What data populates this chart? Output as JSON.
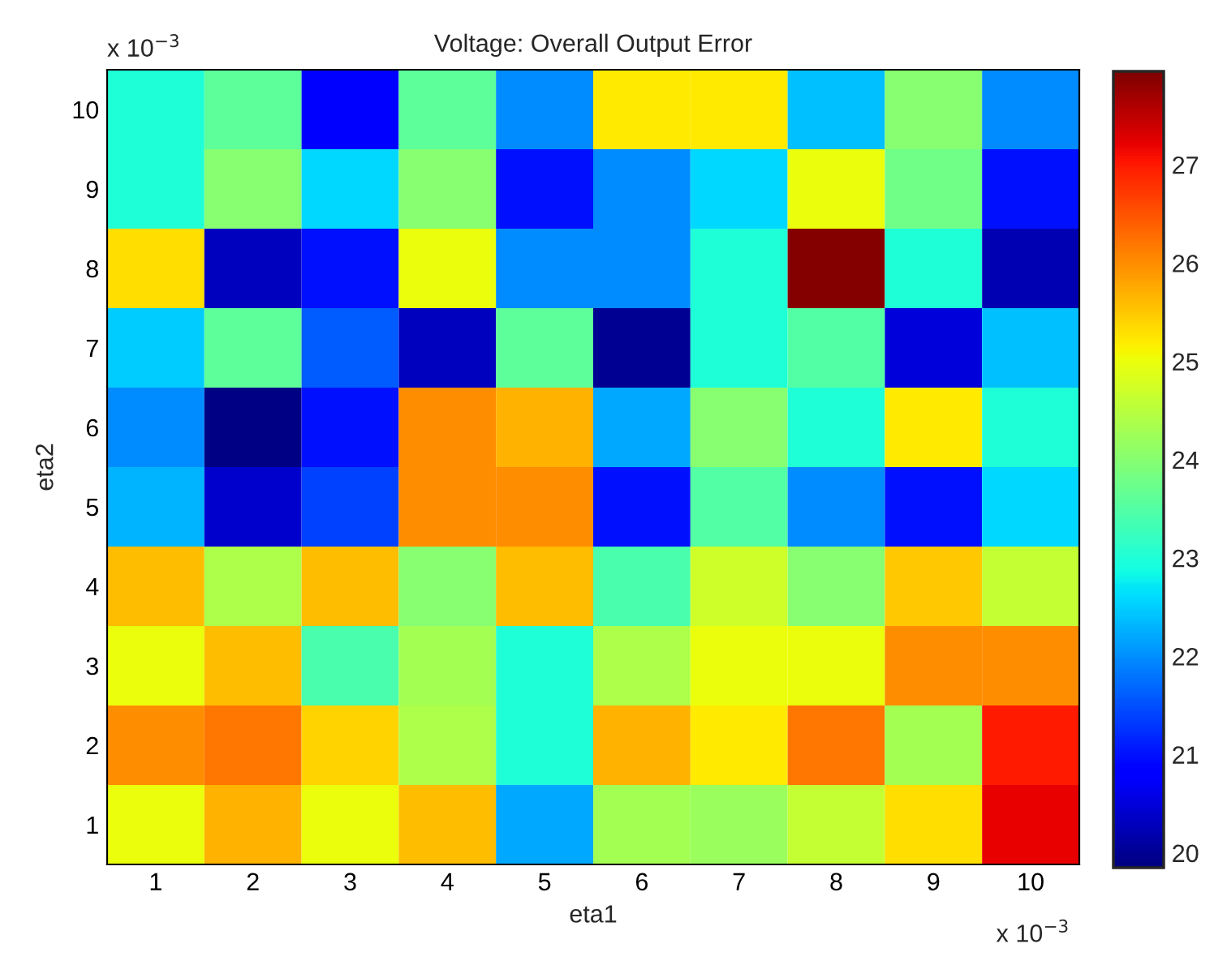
{
  "chart_data": {
    "type": "heatmap",
    "title": "Voltage: Overall Output Error",
    "xlabel": "eta1",
    "ylabel": "eta2",
    "categories": [
      "1",
      "2",
      "3",
      "4",
      "5",
      "6",
      "7",
      "8",
      "9",
      "10"
    ],
    "y_categories": [
      "10",
      "9",
      "8",
      "7",
      "6",
      "5",
      "4",
      "3",
      "2",
      "1"
    ],
    "cells": [
      [
        23,
        23.6,
        20.8,
        23.6,
        22,
        25.2,
        25.2,
        22.4,
        24,
        22
      ],
      [
        23,
        24,
        22.6,
        24,
        21,
        22,
        22.6,
        25,
        23.8,
        21
      ],
      [
        25.3,
        20.3,
        21,
        25,
        22,
        22,
        23,
        27.9,
        23,
        20.2
      ],
      [
        22.5,
        23.6,
        21.6,
        20.3,
        23.6,
        20,
        23,
        23.5,
        20.5,
        22.4
      ],
      [
        22,
        19.9,
        21,
        26,
        25.7,
        22.2,
        24,
        23,
        25.2,
        23
      ],
      [
        22.3,
        20.4,
        21.4,
        26,
        26,
        21,
        23.5,
        22,
        21,
        22.6
      ],
      [
        25.6,
        24.4,
        25.6,
        24,
        25.6,
        23.4,
        24.7,
        24,
        25.5,
        24.6
      ],
      [
        25,
        25.6,
        23.4,
        24.3,
        23,
        24.4,
        25,
        25,
        26,
        26
      ],
      [
        26,
        26.2,
        25.4,
        24.4,
        23,
        25.7,
        25.2,
        26.2,
        24.3,
        27
      ],
      [
        25,
        25.7,
        25,
        25.6,
        22.2,
        24.3,
        24.2,
        24.6,
        25.3,
        27.2
      ]
    ],
    "clim": [
      19.85,
      27.95
    ],
    "cticks": [
      20,
      21,
      22,
      23,
      24,
      25,
      26,
      27
    ],
    "annotations": [
      "x 10$^{−3}$",
      "x 10$^{−3}$"
    ]
  }
}
